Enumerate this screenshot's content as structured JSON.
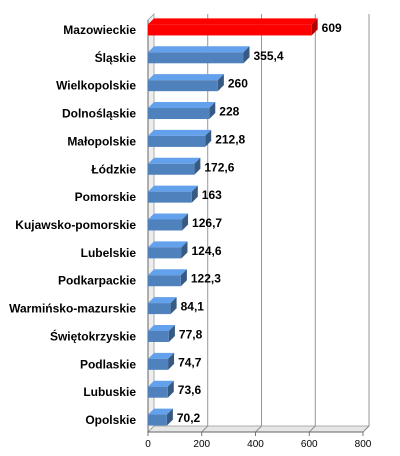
{
  "chart_data": {
    "type": "bar",
    "orientation": "horizontal",
    "title": "",
    "xlabel": "",
    "ylabel": "",
    "categories": [
      "Mazowieckie",
      "Śląskie",
      "Wielkopolskie",
      "Dolnośląskie",
      "Małopolskie",
      "Łódzkie",
      "Pomorskie",
      "Kujawsko-pomorskie",
      "Lubelskie",
      "Podkarpackie",
      "Warmińsko-mazurskie",
      "Świętokrzyskie",
      "Podlaskie",
      "Lubuskie",
      "Opolskie"
    ],
    "values": [
      609,
      355.4,
      260,
      228,
      212.8,
      172.6,
      163,
      126.7,
      124.6,
      122.3,
      84.1,
      77.8,
      74.7,
      73.6,
      70.2
    ],
    "value_labels": [
      "609",
      "355,4",
      "260",
      "228",
      "212,8",
      "172,6",
      "163",
      "126,7",
      "124,6",
      "122,3",
      "84,1",
      "77,8",
      "74,7",
      "73,6",
      "70,2"
    ],
    "xlim": [
      0,
      800
    ],
    "x_ticks": [
      "0",
      "200",
      "400",
      "600",
      "800"
    ],
    "grid": "vertical",
    "legend": "none",
    "colors": {
      "default_bar": "#4f81bd",
      "highlight_bar": "#ff0000"
    },
    "highlight_index": 0
  }
}
